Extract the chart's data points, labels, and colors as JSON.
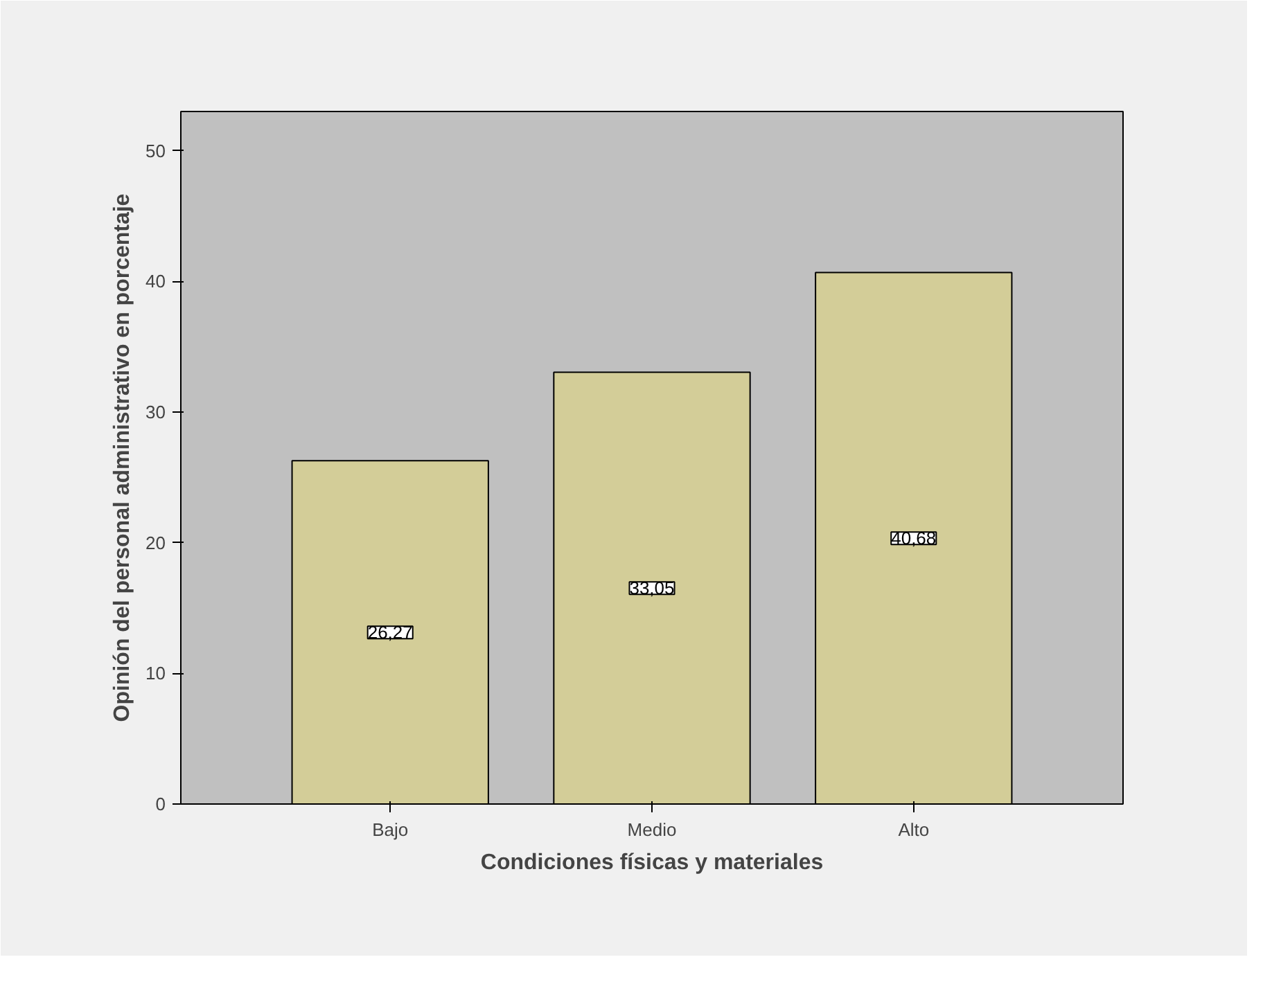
{
  "chart_data": {
    "type": "bar",
    "xlabel": "Condiciones físicas y materiales",
    "ylabel": "Opinión del personal administrativo en porcentaje",
    "categories": [
      "Bajo",
      "Medio",
      "Alto"
    ],
    "values": [
      26.27,
      33.05,
      40.68
    ],
    "value_labels": [
      "26,27",
      "33,05",
      "40,68"
    ],
    "color": "#d3cd98",
    "ylim": [
      0,
      53
    ],
    "yticks": [
      0,
      10,
      20,
      30,
      40,
      50
    ],
    "grid": false
  }
}
